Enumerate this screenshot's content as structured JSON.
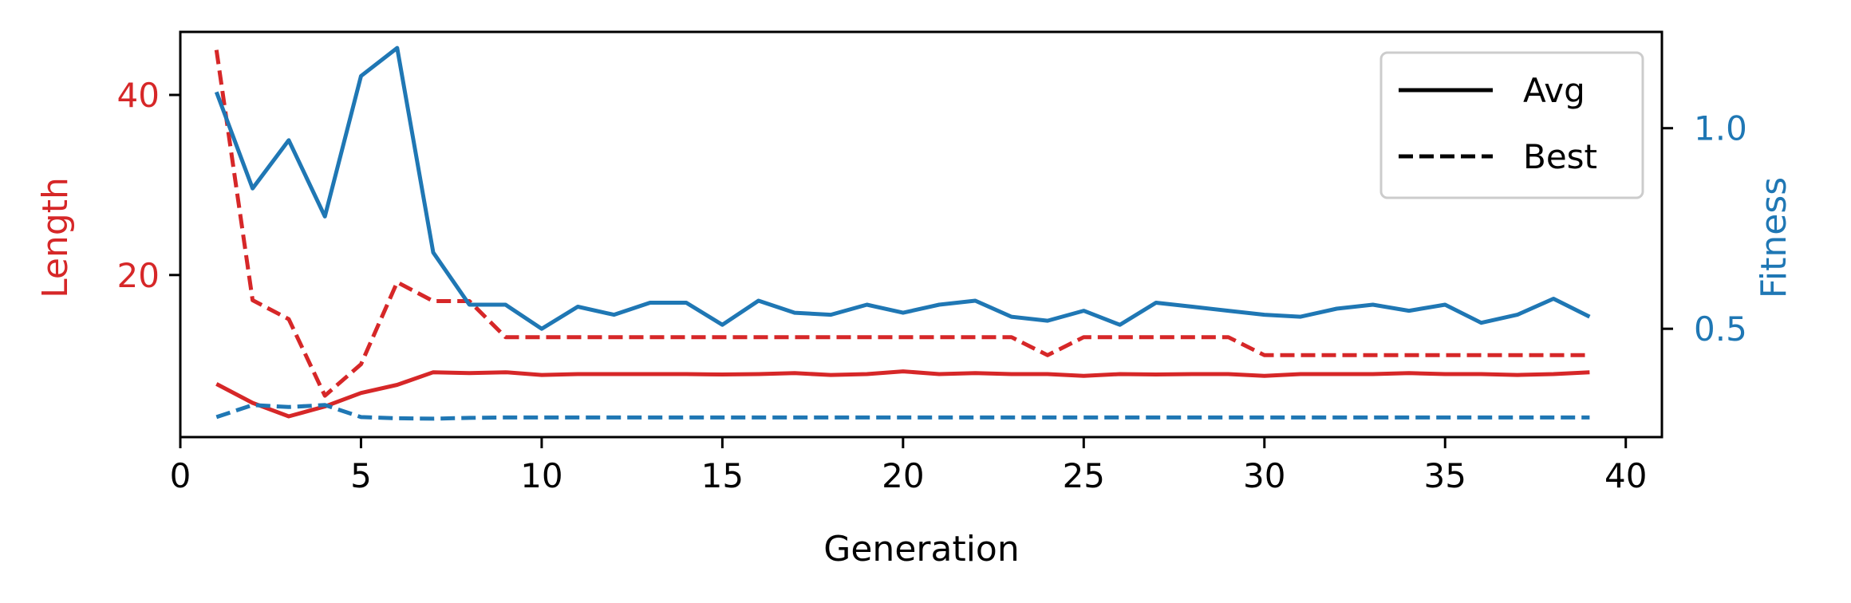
{
  "chart_data": {
    "type": "line",
    "xlabel": "Generation",
    "ylabel_left": "Length",
    "ylabel_right": "Fitness",
    "xlim": [
      0,
      41
    ],
    "ylim_left": [
      2,
      47
    ],
    "ylim_right": [
      0.23,
      1.24
    ],
    "xticks": [
      0,
      5,
      10,
      15,
      20,
      25,
      30,
      35,
      40
    ],
    "yticks_left": [
      20,
      40
    ],
    "yticks_right": [
      0.5,
      1.0
    ],
    "ytick_labels_right": [
      "0.5",
      "1.0"
    ],
    "grid": false,
    "legend": {
      "position": "top-right",
      "entries": [
        {
          "label": "Avg",
          "style": "solid"
        },
        {
          "label": "Best",
          "style": "dashed"
        }
      ]
    },
    "colors": {
      "length": "#d62728",
      "fitness": "#1f77b4"
    },
    "x": [
      1,
      2,
      3,
      4,
      5,
      6,
      7,
      8,
      9,
      10,
      11,
      12,
      13,
      14,
      15,
      16,
      17,
      18,
      19,
      20,
      21,
      22,
      23,
      24,
      25,
      26,
      27,
      28,
      29,
      30,
      31,
      32,
      33,
      34,
      35,
      36,
      37,
      38,
      39
    ],
    "series": [
      {
        "name": "Avg",
        "axis": "left",
        "metric": "length",
        "dash": false,
        "values": [
          7.9,
          5.8,
          4.3,
          5.4,
          6.9,
          7.8,
          9.2,
          9.1,
          9.2,
          8.9,
          9.0,
          9.0,
          9.0,
          9.0,
          8.95,
          9.0,
          9.1,
          8.9,
          9.0,
          9.3,
          9.0,
          9.1,
          9.0,
          9.0,
          8.8,
          9.0,
          8.95,
          9.0,
          9.0,
          8.8,
          9.0,
          9.0,
          9.0,
          9.1,
          9.0,
          9.0,
          8.9,
          9.0,
          9.2
        ]
      },
      {
        "name": "Best",
        "axis": "left",
        "metric": "length",
        "dash": true,
        "values": [
          45,
          17.2,
          15.1,
          6.6,
          10.1,
          19.2,
          17.1,
          17.1,
          13.1,
          13.1,
          13.1,
          13.1,
          13.1,
          13.1,
          13.1,
          13.1,
          13.1,
          13.1,
          13.1,
          13.1,
          13.1,
          13.1,
          13.1,
          11.1,
          13.1,
          13.1,
          13.1,
          13.1,
          13.1,
          11.1,
          11.1,
          11.1,
          11.1,
          11.1,
          11.1,
          11.1,
          11.1,
          11.1,
          11.1
        ]
      },
      {
        "name": "Avg",
        "axis": "right",
        "metric": "fitness",
        "dash": false,
        "values": [
          1.09,
          0.85,
          0.97,
          0.78,
          1.13,
          1.2,
          0.69,
          0.56,
          0.56,
          0.5,
          0.555,
          0.535,
          0.565,
          0.565,
          0.51,
          0.57,
          0.54,
          0.535,
          0.56,
          0.54,
          0.56,
          0.57,
          0.53,
          0.52,
          0.545,
          0.51,
          0.565,
          0.555,
          0.545,
          0.535,
          0.53,
          0.55,
          0.56,
          0.545,
          0.56,
          0.515,
          0.535,
          0.575,
          0.53
        ]
      },
      {
        "name": "Best",
        "axis": "right",
        "metric": "fitness",
        "dash": true,
        "values": [
          0.28,
          0.31,
          0.305,
          0.31,
          0.28,
          0.277,
          0.276,
          0.278,
          0.279,
          0.279,
          0.279,
          0.279,
          0.279,
          0.279,
          0.279,
          0.279,
          0.279,
          0.279,
          0.279,
          0.279,
          0.279,
          0.279,
          0.279,
          0.279,
          0.279,
          0.279,
          0.279,
          0.279,
          0.279,
          0.279,
          0.279,
          0.279,
          0.279,
          0.279,
          0.279,
          0.279,
          0.279,
          0.279,
          0.279
        ]
      }
    ]
  }
}
